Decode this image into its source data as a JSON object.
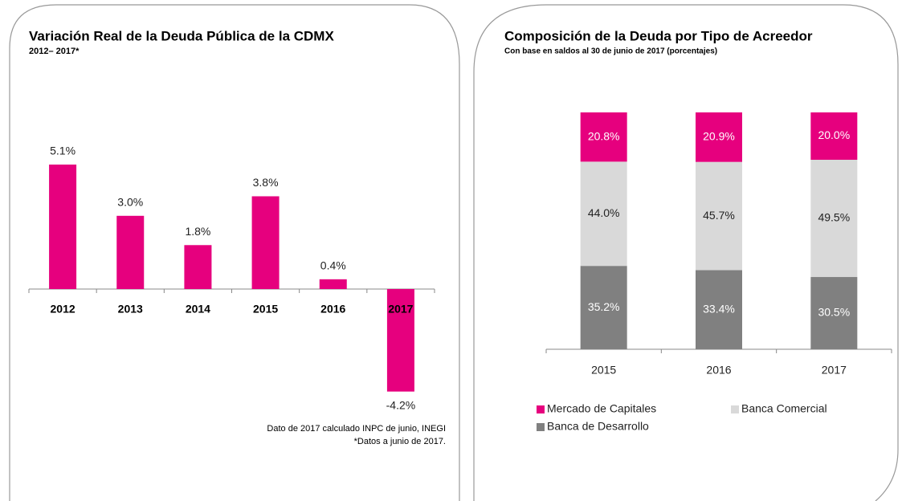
{
  "chart_data": [
    {
      "type": "bar",
      "title": "Variación Real de la Deuda Pública de la CDMX",
      "subtitle": "2012– 2017*",
      "categories": [
        "2012",
        "2013",
        "2014",
        "2015",
        "2016",
        "2017"
      ],
      "values": [
        5.1,
        3.0,
        1.8,
        3.8,
        0.4,
        -4.2
      ],
      "value_labels": [
        "5.1%",
        "3.0%",
        "1.8%",
        "3.8%",
        "0.4%",
        "-4.2%"
      ],
      "color": "#e6007e",
      "notes": [
        "Dato de 2017 calculado INPC de junio, INEGI",
        "*Datos a junio de 2017."
      ]
    },
    {
      "type": "stacked_bar",
      "title": "Composición de la Deuda por Tipo de Acreedor",
      "subtitle": "Con base en saldos al 30 de junio de 2017 (porcentajes)",
      "categories": [
        "2015",
        "2016",
        "2017"
      ],
      "series": [
        {
          "name": "Mercado de Capitales",
          "color": "#e6007e",
          "values": [
            20.8,
            20.9,
            20.0
          ],
          "value_labels": [
            "20.8%",
            "20.9%",
            "20.0%"
          ]
        },
        {
          "name": "Banca Comercial",
          "color": "#d9d9d9",
          "values": [
            44.0,
            45.7,
            49.5
          ],
          "value_labels": [
            "44.0%",
            "45.7%",
            "49.5%"
          ]
        },
        {
          "name": "Banca de Desarrollo",
          "color": "#808080",
          "values": [
            35.2,
            33.4,
            30.5
          ],
          "value_labels": [
            "35.2%",
            "33.4%",
            "30.5%"
          ]
        }
      ]
    }
  ]
}
